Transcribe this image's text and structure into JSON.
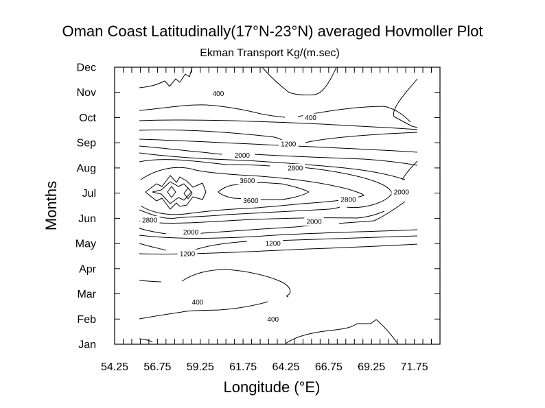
{
  "chart_data": {
    "type": "contour",
    "title": "Oman Coast Latitudinally(17°N-23°N) averaged Hovmoller Plot",
    "subtitle": "Ekman Transport Kg/(m.sec)",
    "xlabel": "Longitude (°E)",
    "ylabel": "Months",
    "xlim": [
      54.25,
      73.25
    ],
    "x_tick_labels": [
      "54.25",
      "56.75",
      "59.25",
      "61.75",
      "64.25",
      "66.75",
      "69.25",
      "71.75"
    ],
    "x_tick_values": [
      54.25,
      56.75,
      59.25,
      61.75,
      64.25,
      66.75,
      69.25,
      71.75
    ],
    "x_minor_tick_step": 0.5,
    "y_tick_labels": [
      "Jan",
      "Feb",
      "Mar",
      "Apr",
      "May",
      "Jun",
      "Jul",
      "Aug",
      "Sep",
      "Oct",
      "Nov",
      "Dec"
    ],
    "contour_levels": [
      400,
      800,
      1200,
      1600,
      2000,
      2400,
      2800,
      3200,
      3600
    ],
    "contour_labels": [
      {
        "text": "400",
        "lon": 60.3,
        "month": 10.95
      },
      {
        "text": "400",
        "lon": 65.7,
        "month": 10.0
      },
      {
        "text": "1200",
        "lon": 64.4,
        "month": 8.95
      },
      {
        "text": "2000",
        "lon": 61.7,
        "month": 8.5
      },
      {
        "text": "2800",
        "lon": 64.8,
        "month": 8.0
      },
      {
        "text": "3600",
        "lon": 62.0,
        "month": 7.5
      },
      {
        "text": "3600",
        "lon": 62.2,
        "month": 6.7
      },
      {
        "text": "2800",
        "lon": 67.9,
        "month": 6.75
      },
      {
        "text": "2000",
        "lon": 71.0,
        "month": 7.05
      },
      {
        "text": "2800",
        "lon": 56.3,
        "month": 5.93
      },
      {
        "text": "2000",
        "lon": 65.9,
        "month": 5.87
      },
      {
        "text": "2000",
        "lon": 58.7,
        "month": 5.45
      },
      {
        "text": "1200",
        "lon": 63.5,
        "month": 5.0
      },
      {
        "text": "1200",
        "lon": 58.5,
        "month": 4.6
      },
      {
        "text": "400",
        "lon": 59.1,
        "month": 2.67
      },
      {
        "text": "400",
        "lon": 63.5,
        "month": 2.0
      }
    ]
  }
}
